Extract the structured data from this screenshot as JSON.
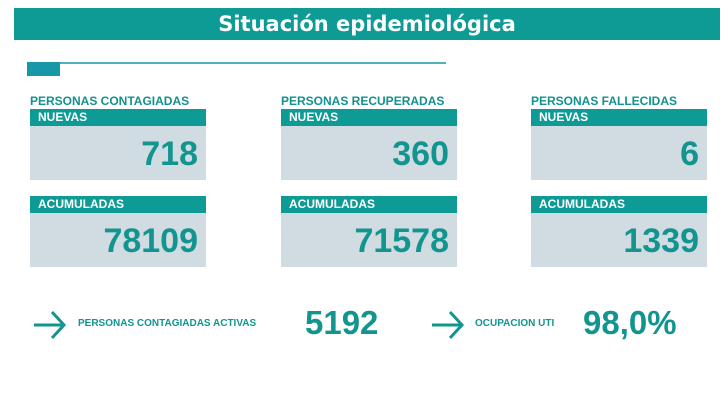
{
  "header": {
    "title": "Situación epidemiológica"
  },
  "sections": [
    {
      "title": "PERSONAS CONTAGIADAS",
      "new_label": "NUEVAS",
      "new_value": "718",
      "total_label": "ACUMULADAS",
      "total_value": "78109"
    },
    {
      "title": "PERSONAS RECUPERADAS",
      "new_label": "NUEVAS",
      "new_value": "360",
      "total_label": "ACUMULADAS",
      "total_value": "71578"
    },
    {
      "title": "PERSONAS FALLECIDAS",
      "new_label": "NUEVAS",
      "new_value": "6",
      "total_label": "ACUMULADAS",
      "total_value": "1339"
    }
  ],
  "summary": {
    "active_label": "PERSONAS CONTAGIADAS ACTIVAS",
    "active_value": "5192",
    "icu_label": "OCUPACION UTI",
    "icu_value": "98,0%"
  }
}
